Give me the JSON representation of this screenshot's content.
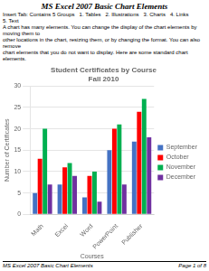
{
  "chart_data": {
    "type": "bar",
    "title": [
      "Student Certificates by Course",
      "Fall 2010"
    ],
    "x_label": "Courses",
    "y_label": "Number of Certificates",
    "categories": [
      "Math",
      "Excel",
      "Word",
      "PowerPoint",
      "Publisher"
    ],
    "series": [
      {
        "name": "September",
        "color": "#4472C4",
        "values": [
          5,
          7,
          4,
          15,
          17
        ]
      },
      {
        "name": "October",
        "color": "#FF0000",
        "values": [
          13,
          11,
          9,
          20,
          24
        ]
      },
      {
        "name": "November",
        "color": "#00B050",
        "values": [
          20,
          12,
          10,
          21,
          27
        ]
      },
      {
        "name": "December",
        "color": "#7030A0",
        "values": [
          7,
          9,
          3,
          7,
          18
        ]
      }
    ],
    "ylim": [
      0,
      30
    ],
    "yticks": [
      0,
      5,
      10,
      15,
      20,
      25,
      30
    ],
    "grid": true,
    "legend": "right",
    "annotations": [
      "MS Excel 2007 Basic Chart Elements",
      "Insert Tab: Contains 5 Groups",
      "1.  Tables",
      "2.  Illustrations",
      "3.  Charts",
      "4.  Links",
      "5.  Text",
      "A chart has many elements. You can change the display of the chart elements by moving them to\nother locations in the chart, resizing them, or by changing the format. You can also remove\nchart elements that you do not want to display. Here are some standard chart elements.",
      "MS Excel 2007 Basic Chart Elements",
      "Page 1 of 8"
    ]
  }
}
